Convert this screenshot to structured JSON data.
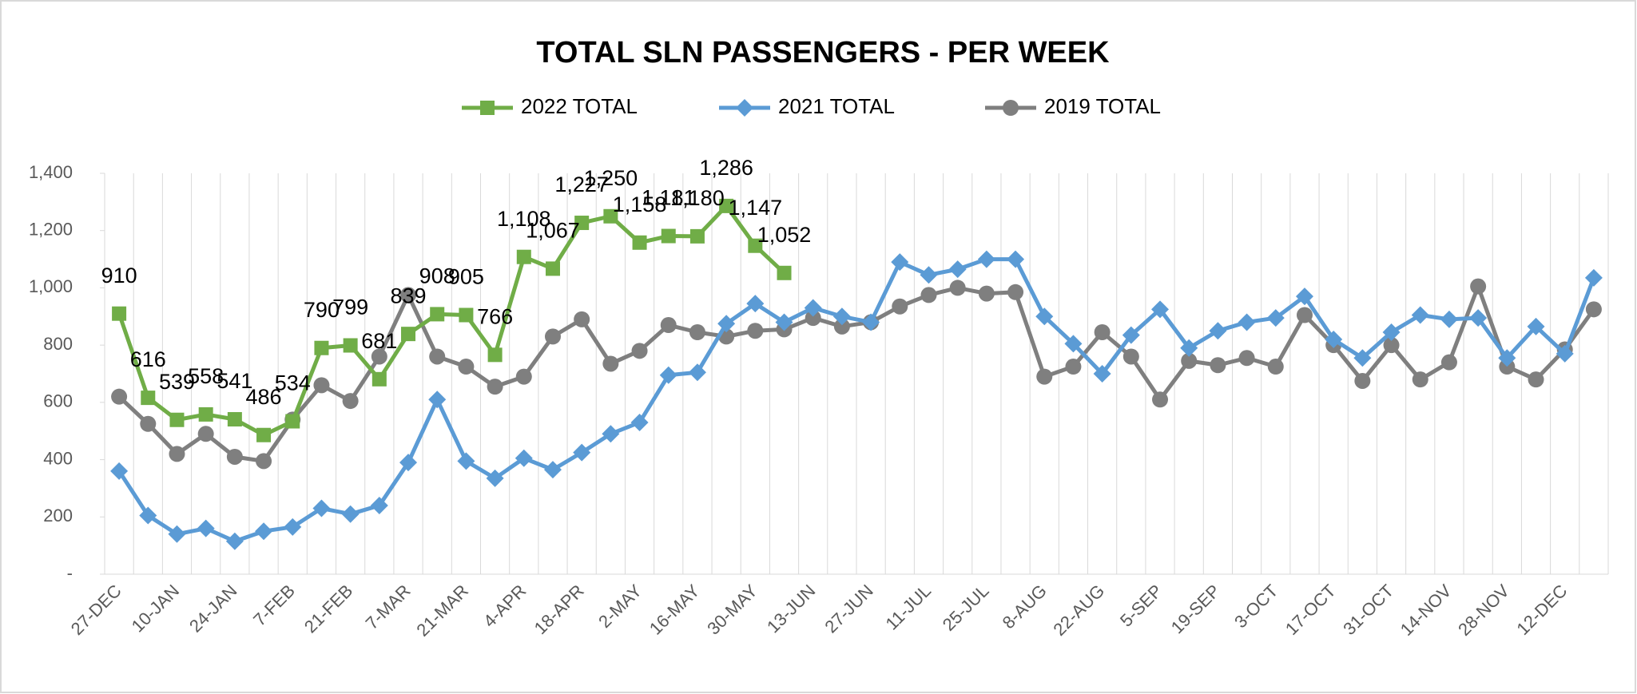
{
  "chart_data": {
    "type": "line",
    "title": "TOTAL SLN PASSENGERS - PER WEEK",
    "categories": [
      "27-DEC",
      null,
      "10-JAN",
      null,
      "24-JAN",
      null,
      "7-FEB",
      null,
      "21-FEB",
      null,
      "7-MAR",
      null,
      "21-MAR",
      null,
      "4-APR",
      null,
      "18-APR",
      null,
      "2-MAY",
      null,
      "16-MAY",
      null,
      "30-MAY",
      null,
      "13-JUN",
      null,
      "27-JUN",
      null,
      "11-JUL",
      null,
      "25-JUL",
      null,
      "8-AUG",
      null,
      "22-AUG",
      null,
      "5-SEP",
      null,
      "19-SEP",
      null,
      "3-OCT",
      null,
      "17-OCT",
      null,
      "31-OCT",
      null,
      "14-NOV",
      null,
      "28-NOV",
      null,
      "12-DEC",
      null
    ],
    "series": [
      {
        "name": "2022 TOTAL",
        "color": "#70ad47",
        "marker": "square",
        "values": [
          910,
          616,
          539,
          558,
          541,
          486,
          534,
          790,
          799,
          681,
          839,
          908,
          905,
          766,
          1108,
          1067,
          1227,
          1250,
          1158,
          1181,
          1180,
          1286,
          1147,
          1052,
          null,
          null,
          null,
          null,
          null,
          null,
          null,
          null,
          null,
          null,
          null,
          null,
          null,
          null,
          null,
          null,
          null,
          null,
          null,
          null,
          null,
          null,
          null,
          null,
          null,
          null,
          null,
          null
        ],
        "value_labels": [
          "910",
          "616",
          "539",
          "558",
          "541",
          "486",
          "534",
          "790",
          "799",
          "681",
          "839",
          "908",
          "905",
          "766",
          "1,108",
          "1,067",
          "1,227",
          "1,250",
          "1,158",
          "1,181",
          "1,180",
          "1,286",
          "1,147",
          "1,052",
          null,
          null,
          null,
          null,
          null,
          null,
          null,
          null,
          null,
          null,
          null,
          null,
          null,
          null,
          null,
          null,
          null,
          null,
          null,
          null,
          null,
          null,
          null,
          null,
          null,
          null,
          null,
          null
        ]
      },
      {
        "name": "2021 TOTAL",
        "color": "#5b9bd5",
        "marker": "diamond",
        "values": [
          360,
          205,
          140,
          160,
          115,
          150,
          165,
          230,
          210,
          240,
          390,
          610,
          395,
          335,
          405,
          365,
          425,
          490,
          530,
          695,
          705,
          875,
          945,
          880,
          930,
          900,
          880,
          1090,
          1045,
          1065,
          1100,
          1100,
          900,
          805,
          700,
          835,
          925,
          790,
          850,
          880,
          895,
          970,
          820,
          755,
          845,
          905,
          890,
          895,
          755,
          865,
          770,
          1035
        ]
      },
      {
        "name": "2019 TOTAL",
        "color": "#7f7f7f",
        "marker": "circle",
        "values": [
          620,
          525,
          420,
          490,
          410,
          395,
          540,
          660,
          605,
          760,
          975,
          760,
          725,
          655,
          690,
          830,
          890,
          735,
          780,
          870,
          845,
          830,
          850,
          855,
          895,
          865,
          880,
          935,
          975,
          1000,
          980,
          985,
          690,
          725,
          845,
          760,
          610,
          745,
          730,
          755,
          725,
          905,
          800,
          675,
          800,
          680,
          740,
          1005,
          725,
          680,
          785,
          925
        ]
      }
    ],
    "ylim": [
      0,
      1400
    ],
    "yticks": [
      {
        "value": 0,
        "label": "-"
      },
      200,
      400,
      600,
      800,
      {
        "value": 1000,
        "label": "1,000"
      },
      {
        "value": 1200,
        "label": "1,200"
      },
      {
        "value": 1400,
        "label": "1,400"
      }
    ],
    "grid": true,
    "legend": "top"
  }
}
